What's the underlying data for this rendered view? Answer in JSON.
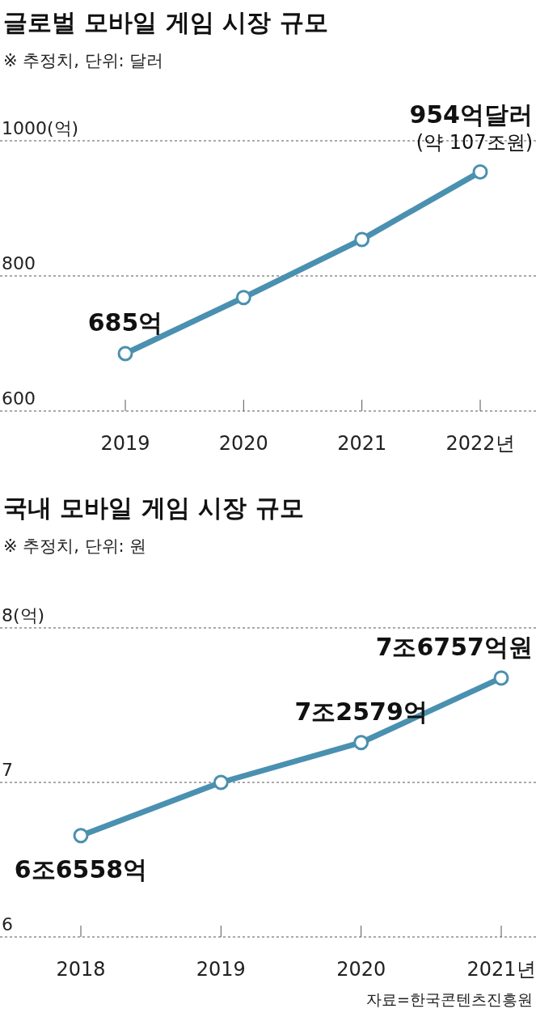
{
  "chart_data": [
    {
      "type": "line",
      "title": "글로벌 모바일 게임 시장 규모",
      "subtitle": "※ 추정치, 단위: 달러",
      "categories": [
        "2019",
        "2020",
        "2021",
        "2022년"
      ],
      "series": [
        {
          "color": "#4a90b0",
          "values": [
            685,
            768,
            854,
            954
          ]
        }
      ],
      "ylim": [
        600,
        1000
      ],
      "yticks": [
        600,
        800,
        {
          "value": 1000,
          "label": "1000(억)"
        }
      ],
      "grid": "y",
      "marker": "circle",
      "line_style": "solid",
      "annotations": [
        {
          "text": "685억",
          "x": "2019",
          "y": 685
        },
        {
          "text": "954억달러",
          "x": "2022년",
          "y": 954
        },
        {
          "text": "(약 107조원)",
          "x": "2022년",
          "y": 954
        }
      ]
    },
    {
      "type": "line",
      "title": "국내 모바일 게임 시장 규모",
      "subtitle": "※ 추정치, 단위: 원",
      "categories": [
        "2018",
        "2019",
        "2020",
        "2021년"
      ],
      "series": [
        {
          "color": "#4a90b0",
          "values": [
            6.6558,
            7.0,
            7.2579,
            7.6757
          ]
        }
      ],
      "ylim": [
        6,
        8
      ],
      "yticks": [
        6,
        7,
        {
          "value": 8,
          "label": "8(억)"
        }
      ],
      "grid": "y",
      "marker": "circle",
      "line_style": "solid",
      "annotations": [
        {
          "text": "6조6558억",
          "x": "2018",
          "y": 6.6558
        },
        {
          "text": "7조2579억",
          "x": "2020",
          "y": 7.2579
        },
        {
          "text": "7조6757억원",
          "x": "2021년",
          "y": 7.6757
        },
        "자료=한국콘텐츠진흥원"
      ]
    }
  ]
}
